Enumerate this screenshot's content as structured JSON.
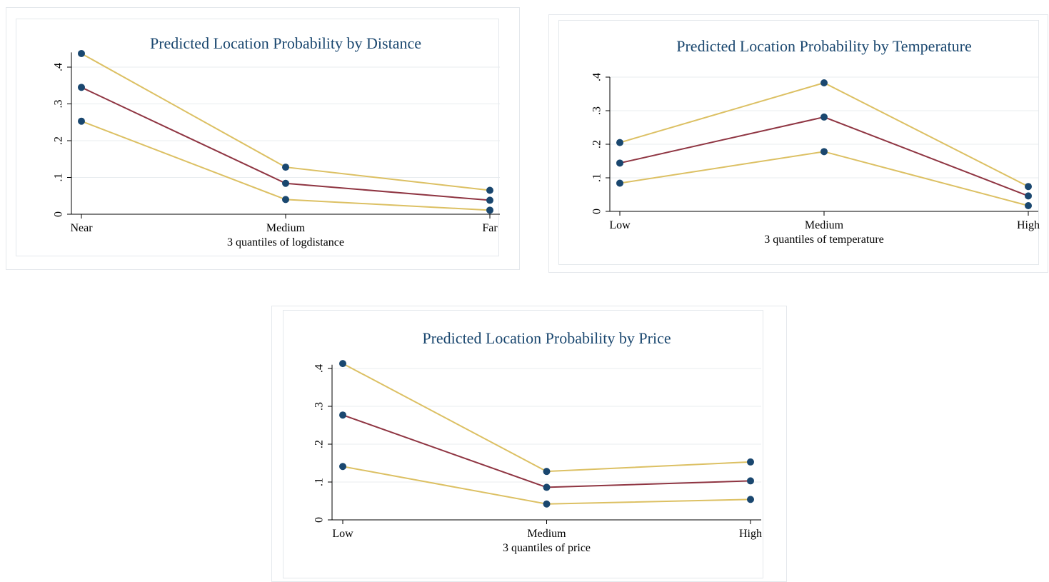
{
  "colors": {
    "title": "#1a476f",
    "estimate": "#8f3542",
    "ci": "#dcc063",
    "marker": "#1a476f"
  },
  "chart_data": [
    {
      "type": "line",
      "title": "Predicted Location Probability by Distance",
      "xlabel": "3 quantiles of logdistance",
      "ylabel": "",
      "categories": [
        "Near",
        "Medium",
        "Far"
      ],
      "ylim": [
        0,
        0.44
      ],
      "yticks": [
        0,
        0.1,
        0.2,
        0.3,
        0.4
      ],
      "ytick_labels": [
        "0",
        ".1",
        ".2",
        ".3",
        ".4"
      ],
      "grid": true,
      "series": [
        {
          "role": "upper",
          "values": [
            0.437,
            0.128,
            0.065
          ]
        },
        {
          "role": "estimate",
          "values": [
            0.345,
            0.084,
            0.038
          ]
        },
        {
          "role": "lower",
          "values": [
            0.253,
            0.04,
            0.011
          ]
        }
      ]
    },
    {
      "type": "line",
      "title": "Predicted Location Probability by Temperature",
      "xlabel": "3 quantiles of temperature",
      "ylabel": "",
      "categories": [
        "Low",
        "Medium",
        "High"
      ],
      "ylim": [
        0,
        0.4
      ],
      "yticks": [
        0,
        0.1,
        0.2,
        0.3,
        0.4
      ],
      "ytick_labels": [
        "0",
        ".1",
        ".2",
        ".3",
        ".4"
      ],
      "grid": true,
      "series": [
        {
          "role": "upper",
          "values": [
            0.205,
            0.383,
            0.074
          ]
        },
        {
          "role": "estimate",
          "values": [
            0.144,
            0.281,
            0.046
          ]
        },
        {
          "role": "lower",
          "values": [
            0.084,
            0.178,
            0.017
          ]
        }
      ]
    },
    {
      "type": "line",
      "title": "Predicted Location Probability by Price",
      "xlabel": "3 quantiles of price",
      "ylabel": "",
      "categories": [
        "Low",
        "Medium",
        "High"
      ],
      "ylim": [
        0,
        0.41
      ],
      "yticks": [
        0,
        0.1,
        0.2,
        0.3,
        0.4
      ],
      "ytick_labels": [
        "0",
        ".1",
        ".2",
        ".3",
        ".4"
      ],
      "grid": true,
      "series": [
        {
          "role": "upper",
          "values": [
            0.413,
            0.128,
            0.153
          ]
        },
        {
          "role": "estimate",
          "values": [
            0.277,
            0.086,
            0.103
          ]
        },
        {
          "role": "lower",
          "values": [
            0.141,
            0.042,
            0.054
          ]
        }
      ]
    }
  ]
}
